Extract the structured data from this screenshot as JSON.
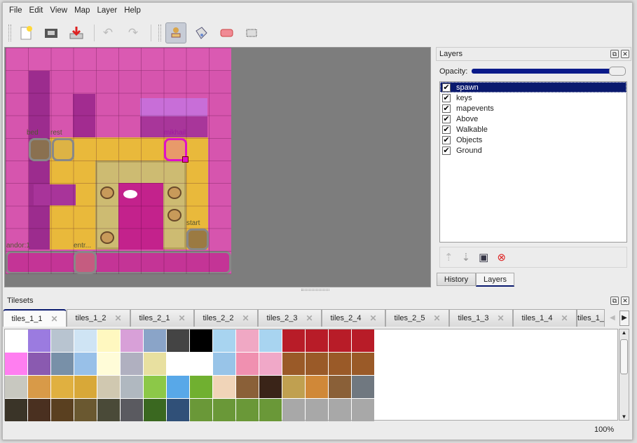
{
  "menu": [
    "File",
    "Edit",
    "View",
    "Map",
    "Layer",
    "Help"
  ],
  "toolbar": {
    "new": "new-file-icon",
    "open": "open-icon",
    "save": "save-icon",
    "undo": "undo-icon",
    "redo": "redo-icon",
    "stamp": "stamp-brush-icon",
    "fill": "bucket-fill-icon",
    "eraser": "eraser-icon",
    "select": "rectangle-select-icon"
  },
  "map": {
    "objects": [
      {
        "name": "bed"
      },
      {
        "name": "rest"
      },
      {
        "name": "mikhail"
      },
      {
        "name": "start"
      },
      {
        "name": "andor:1"
      },
      {
        "name": "entr..."
      }
    ]
  },
  "layers_panel": {
    "title": "Layers",
    "opacity_label": "Opacity:",
    "opacity": 1.0,
    "layers": [
      {
        "name": "spawn",
        "visible": true,
        "selected": true
      },
      {
        "name": "keys",
        "visible": true
      },
      {
        "name": "mapevents",
        "visible": true
      },
      {
        "name": "Above",
        "visible": true
      },
      {
        "name": "Walkable",
        "visible": true
      },
      {
        "name": "Objects",
        "visible": true
      },
      {
        "name": "Ground",
        "visible": true
      }
    ],
    "tabs": [
      "History",
      "Layers"
    ],
    "active_tab": "Layers"
  },
  "tilesets_panel": {
    "title": "Tilesets",
    "tabs": [
      "tiles_1_1",
      "tiles_1_2",
      "tiles_2_1",
      "tiles_2_2",
      "tiles_2_3",
      "tiles_2_4",
      "tiles_2_5",
      "tiles_1_3",
      "tiles_1_4",
      "tiles_1_"
    ],
    "active_tab": "tiles_1_1"
  },
  "status": {
    "zoom": "100%"
  },
  "colors": {
    "selection": "#0a1a6e",
    "map_background": "#7d7d7d"
  }
}
